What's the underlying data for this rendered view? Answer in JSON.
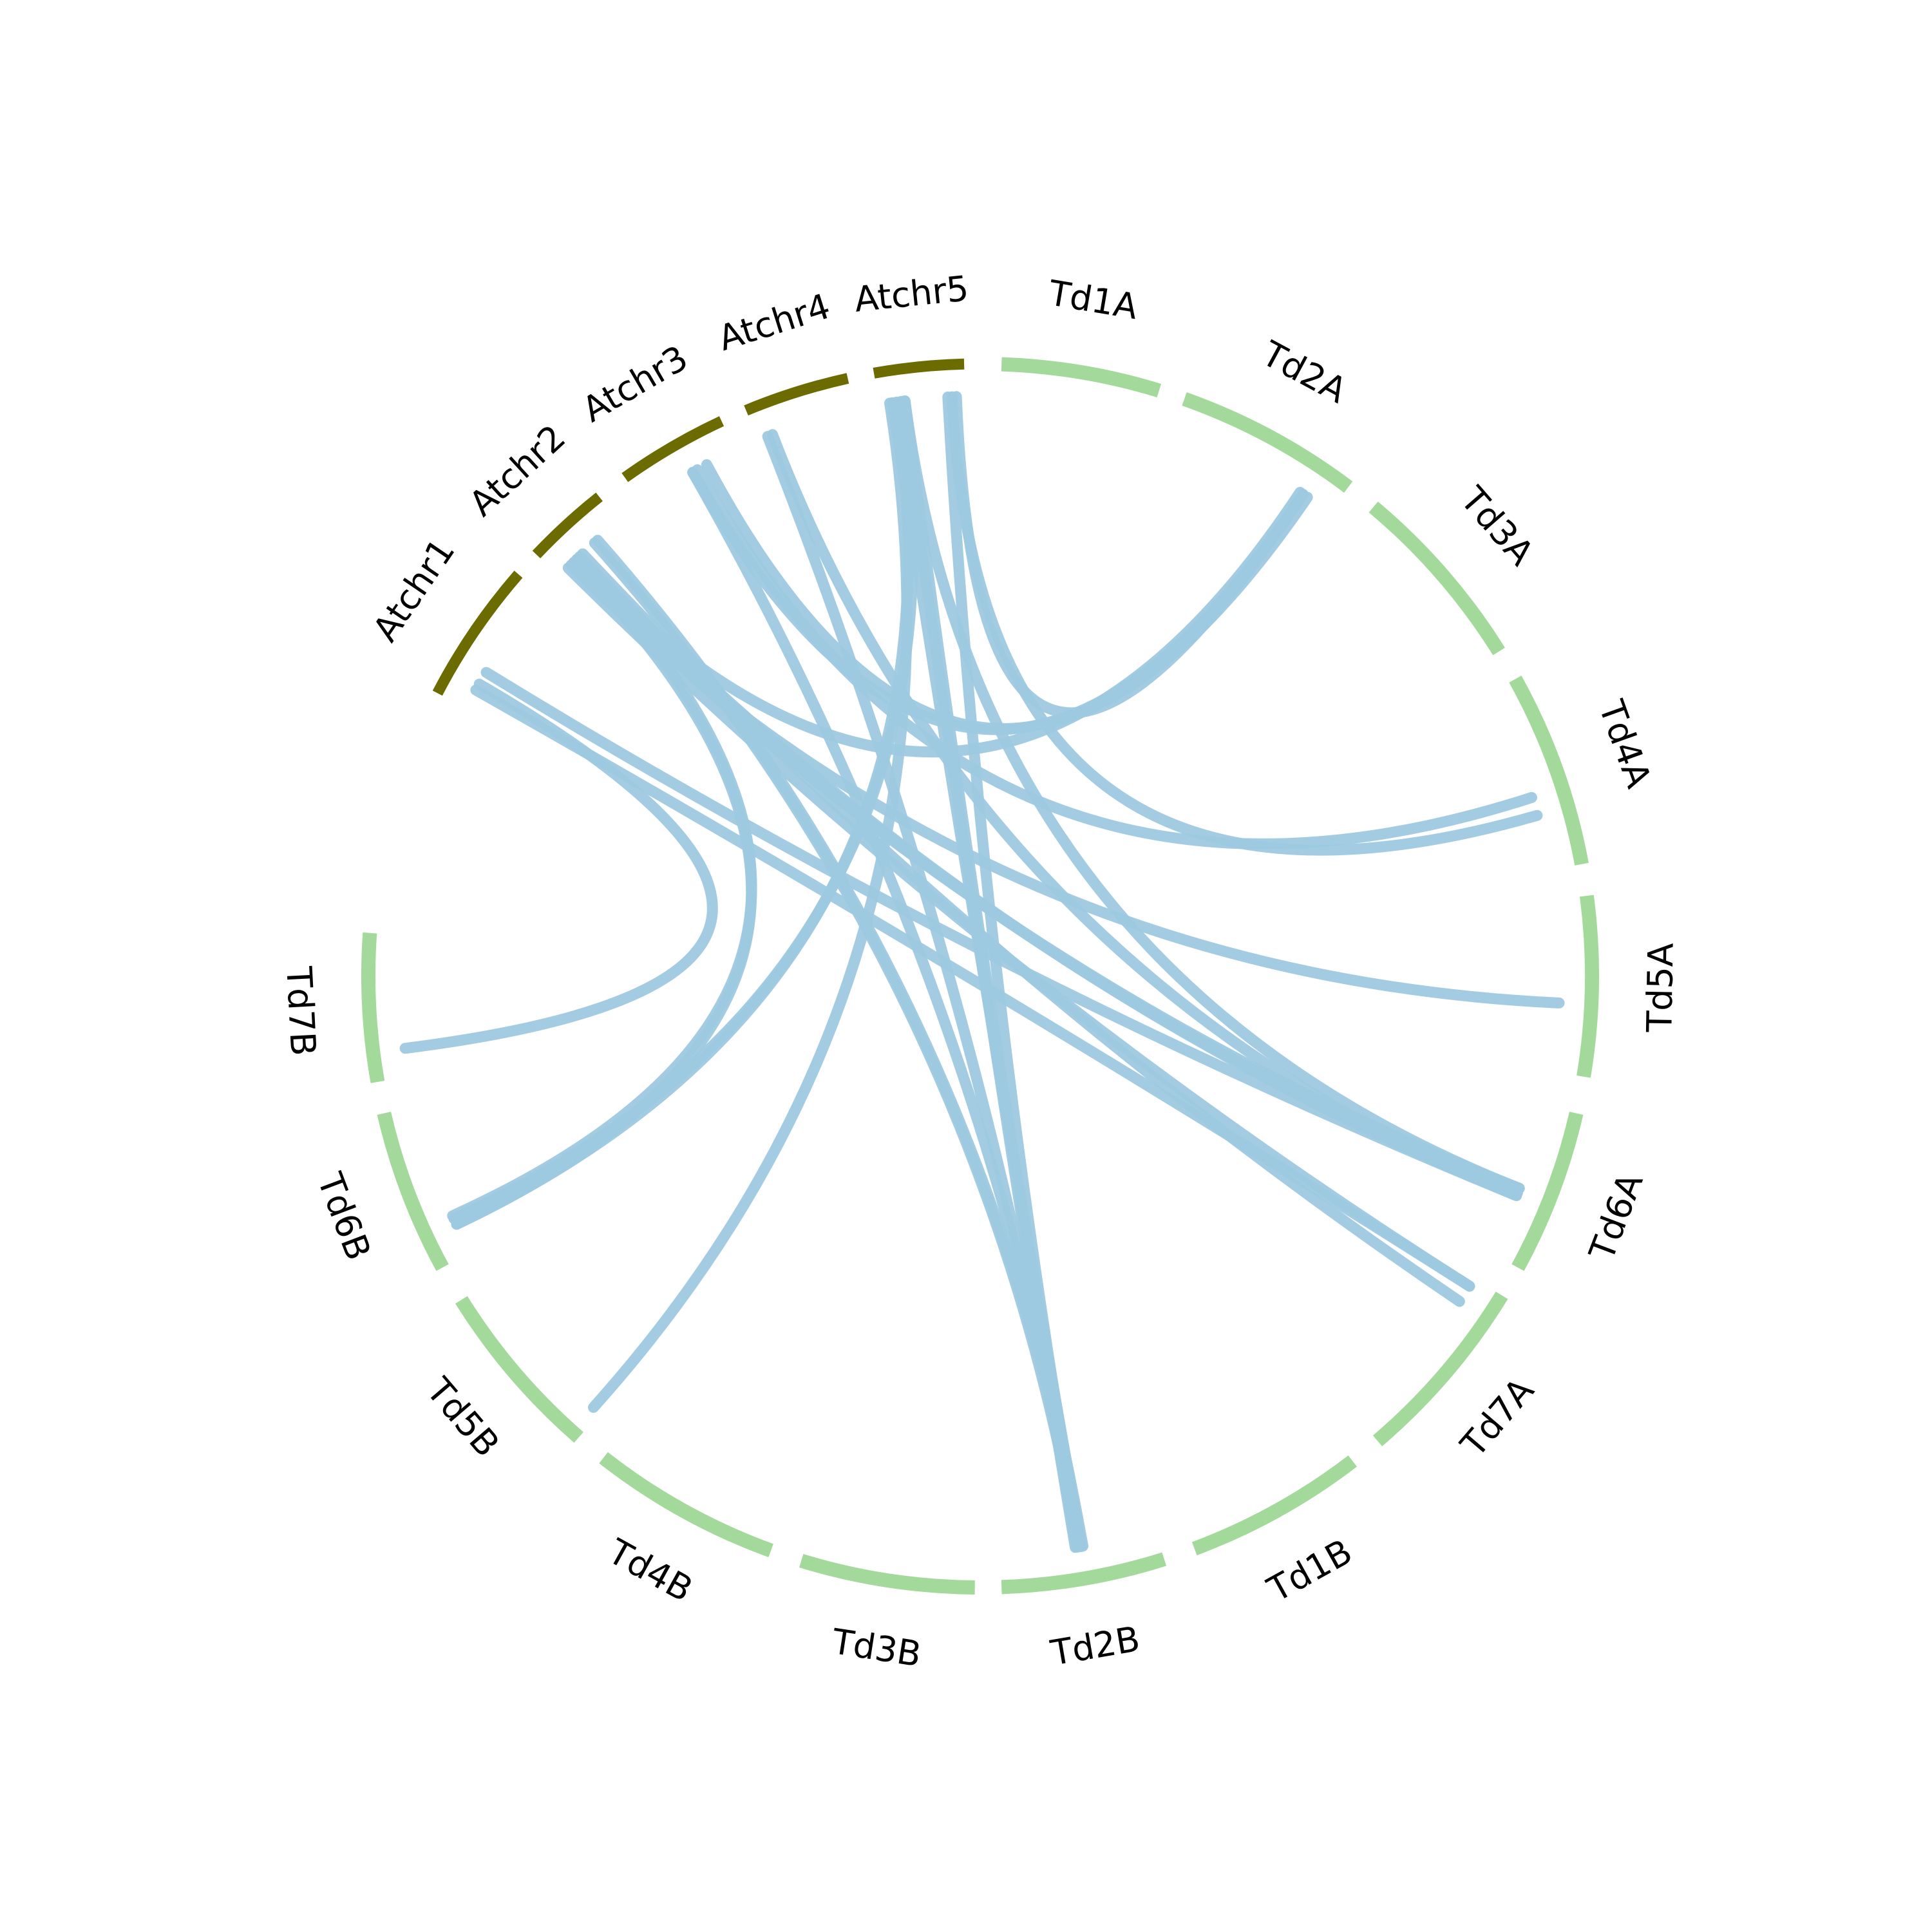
{
  "colors": {
    "arabidopsis": "#6b6b00",
    "durum": "#a3d99a",
    "link": "#9ec9e0"
  },
  "chromosomes": [
    {
      "id": "Atchr1",
      "label": "Atchr1",
      "group": "arabidopsis"
    },
    {
      "id": "Atchr2",
      "label": "Atchr2",
      "group": "arabidopsis"
    },
    {
      "id": "Atchr3",
      "label": "Atchr3",
      "group": "arabidopsis"
    },
    {
      "id": "Atchr4",
      "label": "Atchr4",
      "group": "arabidopsis"
    },
    {
      "id": "Atchr5",
      "label": "Atchr5",
      "group": "arabidopsis"
    },
    {
      "id": "Td1A",
      "label": "Td1A",
      "group": "durum"
    },
    {
      "id": "Td2A",
      "label": "Td2A",
      "group": "durum"
    },
    {
      "id": "Td3A",
      "label": "Td3A",
      "group": "durum"
    },
    {
      "id": "Td4A",
      "label": "Td4A",
      "group": "durum"
    },
    {
      "id": "Td5A",
      "label": "Td5A",
      "group": "durum"
    },
    {
      "id": "Td6A",
      "label": "Td6A",
      "group": "durum"
    },
    {
      "id": "Td7A",
      "label": "Td7A",
      "group": "durum"
    },
    {
      "id": "Td1B",
      "label": "Td1B",
      "group": "durum"
    },
    {
      "id": "Td2B",
      "label": "Td2B",
      "group": "durum"
    },
    {
      "id": "Td3B",
      "label": "Td3B",
      "group": "durum"
    },
    {
      "id": "Td4B",
      "label": "Td4B",
      "group": "durum"
    },
    {
      "id": "Td5B",
      "label": "Td5B",
      "group": "durum"
    },
    {
      "id": "Td6B",
      "label": "Td6B",
      "group": "durum"
    },
    {
      "id": "Td7B",
      "label": "Td7B",
      "group": "durum"
    }
  ],
  "links": [
    {
      "from": "Atchr5",
      "f": 0.15,
      "to": "Td2B",
      "t": 0.48
    },
    {
      "from": "Atchr5",
      "f": 0.3,
      "to": "Td2B",
      "t": 0.5
    },
    {
      "from": "Atchr5",
      "f": 0.25,
      "to": "Td2B",
      "t": 0.52
    },
    {
      "from": "Atchr5",
      "f": 0.8,
      "to": "Td2B",
      "t": 0.49
    },
    {
      "from": "Atchr4",
      "f": 0.1,
      "to": "Td2B",
      "t": 0.51
    },
    {
      "from": "Atchr2",
      "f": 0.6,
      "to": "Td2B",
      "t": 0.5
    },
    {
      "from": "Atchr3",
      "f": 0.55,
      "to": "Td2B",
      "t": 0.47
    },
    {
      "from": "Atchr5",
      "f": 0.2,
      "to": "Td6B",
      "t": 0.2
    },
    {
      "from": "Atchr5",
      "f": 0.28,
      "to": "Td6B",
      "t": 0.24
    },
    {
      "from": "Atchr5",
      "f": 0.12,
      "to": "Td5B",
      "t": 0.05
    },
    {
      "from": "Atchr5",
      "f": 0.85,
      "to": "Td4A",
      "t": 0.7
    },
    {
      "from": "Atchr5",
      "f": 0.3,
      "to": "Td6A",
      "t": 0.55
    },
    {
      "from": "Atchr4",
      "f": 0.15,
      "to": "Td6A",
      "t": 0.6
    },
    {
      "from": "Atchr3",
      "f": 0.55,
      "to": "Td2A",
      "t": 0.82
    },
    {
      "from": "Atchr3",
      "f": 0.7,
      "to": "Td2A",
      "t": 0.85
    },
    {
      "from": "Atchr2",
      "f": 0.3,
      "to": "Td2A",
      "t": 0.8
    },
    {
      "from": "Atchr2",
      "f": 0.2,
      "to": "Td5A",
      "t": 0.6
    },
    {
      "from": "Atchr2",
      "f": 0.25,
      "to": "Td6A",
      "t": 0.55
    },
    {
      "from": "Atchr2",
      "f": 0.35,
      "to": "Td6A",
      "t": 0.6
    },
    {
      "from": "Atchr2",
      "f": 0.3,
      "to": "Td6A",
      "t": 0.58
    },
    {
      "from": "Atchr2",
      "f": 0.4,
      "to": "Td7A",
      "t": 0.15
    },
    {
      "from": "Atchr2",
      "f": 0.15,
      "to": "Td7A",
      "t": 0.05
    },
    {
      "from": "Atchr1",
      "f": 0.15,
      "to": "Td7A",
      "t": 0.05
    },
    {
      "from": "Atchr1",
      "f": 0.3,
      "to": "Td6A",
      "t": 0.6
    },
    {
      "from": "Atchr2",
      "f": 0.25,
      "to": "Td6B",
      "t": 0.2
    },
    {
      "from": "Atchr2",
      "f": 0.3,
      "to": "Td6B",
      "t": 0.26
    },
    {
      "from": "Atchr1",
      "f": 0.2,
      "to": "Td7B",
      "t": 0.2
    },
    {
      "from": "Atchr3",
      "f": 0.6,
      "to": "Td4A",
      "t": 0.6
    },
    {
      "from": "Atchr2",
      "f": 0.65,
      "to": "Td2B",
      "t": 0.48
    },
    {
      "from": "Atchr5",
      "f": 0.9,
      "to": "Td2A",
      "t": 0.82
    }
  ]
}
